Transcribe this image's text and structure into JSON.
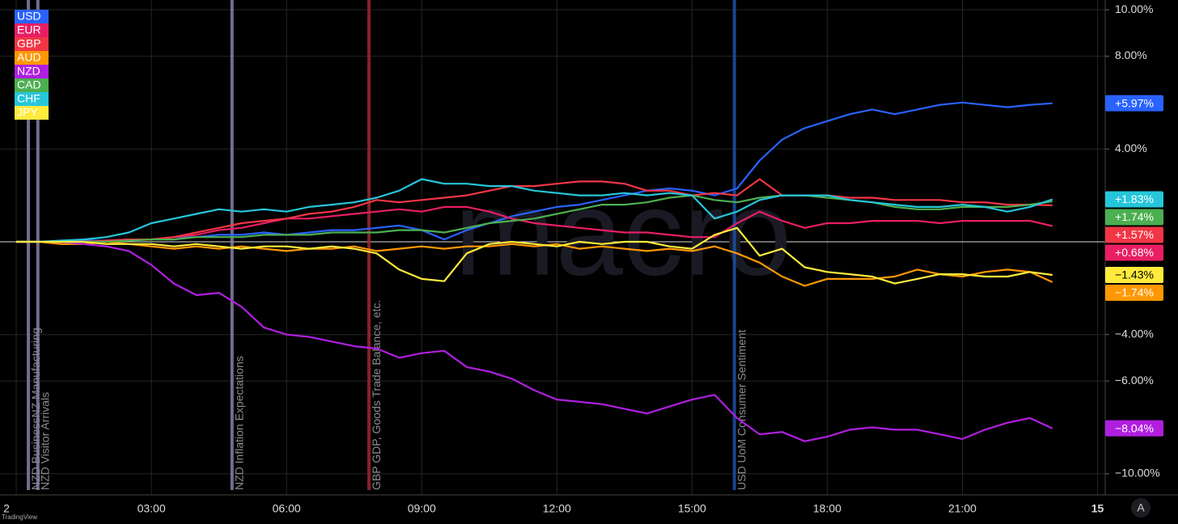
{
  "chart_data": {
    "type": "line",
    "source": "TradingView",
    "watermark": "macro",
    "button": "A",
    "x": [
      0,
      0.5,
      1,
      1.5,
      2,
      2.5,
      3,
      3.5,
      4,
      4.5,
      5,
      5.5,
      6,
      6.5,
      7,
      7.5,
      8,
      8.5,
      9,
      9.5,
      10,
      10.5,
      11,
      11.5,
      12,
      12.5,
      13,
      13.5,
      14,
      14.5,
      15,
      15.5,
      16,
      16.5,
      17,
      17.5,
      18,
      18.5,
      19,
      19.5,
      20,
      20.5,
      21,
      21.5,
      22,
      22.5,
      23
    ],
    "series": [
      {
        "name": "USD",
        "color": "#2962ff",
        "end_label": "+5.97%",
        "values": [
          0,
          0,
          0,
          0.05,
          0.05,
          0.1,
          0.1,
          0.2,
          0.2,
          0.3,
          0.3,
          0.4,
          0.3,
          0.4,
          0.5,
          0.5,
          0.6,
          0.7,
          0.5,
          0.1,
          0.5,
          0.8,
          1.1,
          1.3,
          1.5,
          1.6,
          1.8,
          2.0,
          2.2,
          2.3,
          2.2,
          2.0,
          2.3,
          3.5,
          4.4,
          4.9,
          5.2,
          5.5,
          5.7,
          5.5,
          5.7,
          5.9,
          6.0,
          5.9,
          5.8,
          5.9,
          5.97
        ]
      },
      {
        "name": "EUR",
        "color": "#e91e63",
        "end_label": "+0.68%",
        "values": [
          0,
          0,
          0,
          0,
          0,
          0.1,
          0.1,
          0.2,
          0.3,
          0.5,
          0.6,
          0.8,
          1.0,
          1.0,
          1.1,
          1.2,
          1.3,
          1.4,
          1.3,
          1.5,
          1.5,
          1.3,
          1.0,
          0.8,
          0.7,
          0.6,
          0.5,
          0.4,
          0.4,
          0.3,
          0.2,
          0.2,
          0.8,
          1.3,
          0.9,
          0.6,
          0.8,
          0.8,
          0.9,
          0.9,
          0.9,
          0.8,
          0.9,
          0.9,
          0.9,
          0.9,
          0.68
        ]
      },
      {
        "name": "GBP",
        "color": "#f23645",
        "end_label": "+1.57%",
        "values": [
          0,
          0,
          0,
          0,
          0.05,
          0.1,
          0.1,
          0.2,
          0.4,
          0.6,
          0.8,
          0.9,
          1.0,
          1.2,
          1.3,
          1.5,
          1.8,
          1.7,
          1.8,
          1.9,
          2.0,
          2.2,
          2.4,
          2.4,
          2.5,
          2.6,
          2.6,
          2.5,
          2.2,
          2.2,
          2.0,
          2.1,
          2.0,
          2.7,
          2.0,
          2.0,
          2.0,
          1.9,
          1.9,
          1.8,
          1.8,
          1.8,
          1.7,
          1.7,
          1.6,
          1.6,
          1.57
        ]
      },
      {
        "name": "AUD",
        "color": "#ff9800",
        "end_label": "−1.74%",
        "values": [
          0,
          0,
          -0.1,
          -0.1,
          0,
          -0.1,
          -0.2,
          -0.3,
          -0.2,
          -0.3,
          -0.2,
          -0.3,
          -0.4,
          -0.3,
          -0.3,
          -0.2,
          -0.4,
          -0.3,
          -0.2,
          -0.3,
          -0.2,
          -0.2,
          -0.1,
          -0.2,
          -0.1,
          -0.3,
          -0.2,
          -0.3,
          -0.4,
          -0.3,
          -0.4,
          -0.2,
          -0.5,
          -0.9,
          -1.5,
          -1.9,
          -1.6,
          -1.6,
          -1.6,
          -1.5,
          -1.2,
          -1.4,
          -1.5,
          -1.3,
          -1.2,
          -1.3,
          -1.74
        ]
      },
      {
        "name": "NZD",
        "color": "#b01fe0",
        "end_label": "−8.04%",
        "values": [
          0,
          0,
          0,
          -0.1,
          -0.2,
          -0.4,
          -1.0,
          -1.8,
          -2.3,
          -2.2,
          -2.8,
          -3.7,
          -4.0,
          -4.1,
          -4.3,
          -4.5,
          -4.6,
          -5.0,
          -4.8,
          -4.7,
          -5.4,
          -5.6,
          -5.9,
          -6.4,
          -6.8,
          -6.9,
          -7.0,
          -7.2,
          -7.4,
          -7.1,
          -6.8,
          -6.6,
          -7.6,
          -8.3,
          -8.2,
          -8.6,
          -8.4,
          -8.1,
          -8.0,
          -8.1,
          -8.1,
          -8.3,
          -8.5,
          -8.1,
          -7.8,
          -7.6,
          -8.04
        ]
      },
      {
        "name": "CAD",
        "color": "#4caf50",
        "end_label": "+1.74%",
        "values": [
          0,
          0,
          0,
          0,
          0,
          0.05,
          0.1,
          0.1,
          0.2,
          0.2,
          0.2,
          0.3,
          0.3,
          0.3,
          0.4,
          0.4,
          0.4,
          0.5,
          0.5,
          0.4,
          0.6,
          0.8,
          0.9,
          1.0,
          1.2,
          1.4,
          1.6,
          1.6,
          1.7,
          1.9,
          2.0,
          1.8,
          1.7,
          1.9,
          2.0,
          2.0,
          1.9,
          1.8,
          1.7,
          1.5,
          1.4,
          1.4,
          1.5,
          1.5,
          1.5,
          1.6,
          1.74
        ]
      },
      {
        "name": "CHF",
        "color": "#26c6da",
        "end_label": "+1.83%",
        "values": [
          0,
          0,
          0.05,
          0.1,
          0.2,
          0.4,
          0.8,
          1.0,
          1.2,
          1.4,
          1.3,
          1.4,
          1.3,
          1.5,
          1.6,
          1.7,
          1.9,
          2.2,
          2.7,
          2.5,
          2.5,
          2.4,
          2.4,
          2.2,
          2.1,
          2.0,
          2.0,
          2.1,
          2.0,
          2.1,
          2.0,
          1.0,
          1.3,
          1.8,
          2.0,
          2.0,
          2.0,
          1.8,
          1.7,
          1.6,
          1.5,
          1.5,
          1.6,
          1.5,
          1.3,
          1.5,
          1.83
        ]
      },
      {
        "name": "JPY",
        "color": "#ffeb3b",
        "end_label": "−1.43%",
        "values": [
          0,
          0,
          0,
          0,
          -0.1,
          -0.1,
          -0.1,
          -0.2,
          -0.1,
          -0.2,
          -0.3,
          -0.2,
          -0.2,
          -0.3,
          -0.2,
          -0.3,
          -0.5,
          -1.2,
          -1.6,
          -1.7,
          -0.5,
          -0.1,
          0,
          -0.1,
          -0.2,
          0,
          -0.1,
          0,
          0,
          -0.2,
          -0.3,
          0.3,
          0.6,
          -0.6,
          -0.3,
          -1.1,
          -1.3,
          -1.4,
          -1.5,
          -1.8,
          -1.6,
          -1.4,
          -1.4,
          -1.5,
          -1.5,
          -1.3,
          -1.43
        ]
      }
    ],
    "annotations": [
      {
        "text": "NZD BusinessNZ Manufacturing",
        "x": 0.27,
        "color": "#8a80a8"
      },
      {
        "text": "NZD Visitor Arrivals",
        "x": 0.48,
        "color": "#8a80a8"
      },
      {
        "text": "NZD Inflation Expectations",
        "x": 4.79,
        "color": "#8a80a8"
      },
      {
        "text": "GBP GDP, Goods Trade Balance, etc.",
        "x": 7.83,
        "color": "#a0282d"
      },
      {
        "text": "USD UoM Consumer Sentiment",
        "x": 15.94,
        "color": "#1e4fa8"
      }
    ],
    "xlim": [
      -0.36,
      24.17
    ],
    "xticks": [
      {
        "value": 0,
        "label": "2"
      },
      {
        "value": 3,
        "label": "03:00"
      },
      {
        "value": 6,
        "label": "06:00"
      },
      {
        "value": 9,
        "label": "09:00"
      },
      {
        "value": 12,
        "label": "12:00"
      },
      {
        "value": 15,
        "label": "15:00"
      },
      {
        "value": 18,
        "label": "18:00"
      },
      {
        "value": 21,
        "label": "21:00"
      },
      {
        "value": 24,
        "label": "15"
      }
    ],
    "ylim": [
      -10.91,
      10.42
    ],
    "yticks": [
      {
        "value": 10,
        "label": "10.00%"
      },
      {
        "value": 8,
        "label": "8.00%"
      },
      {
        "value": 4,
        "label": "4.00%"
      },
      {
        "value": -4,
        "label": "−4.00%"
      },
      {
        "value": -6,
        "label": "−6.00%"
      },
      {
        "value": -10,
        "label": "−10.00%"
      }
    ],
    "grid": true,
    "legend": "top-left"
  }
}
